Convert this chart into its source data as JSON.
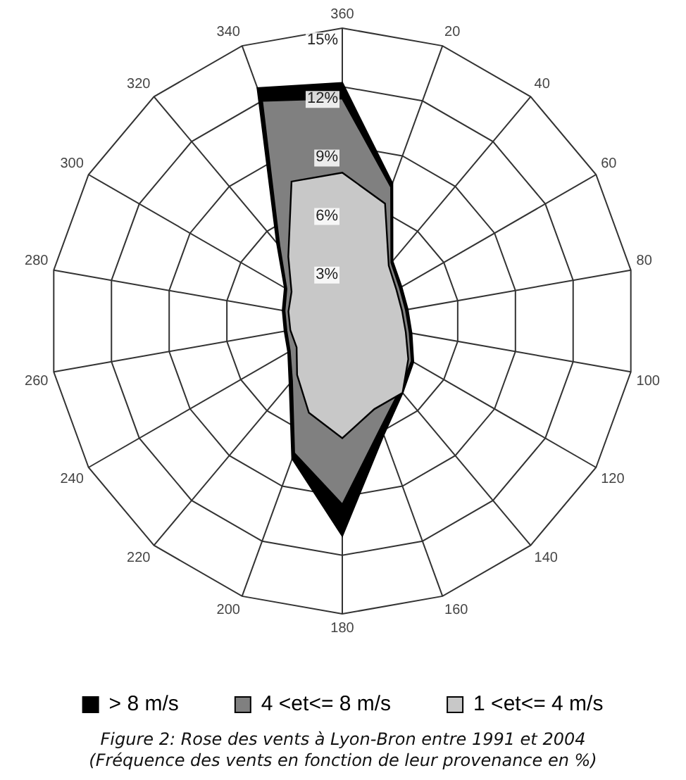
{
  "chart_data": {
    "type": "radar",
    "categories": [
      "360",
      "20",
      "40",
      "60",
      "80",
      "100",
      "120",
      "140",
      "160",
      "180",
      "200",
      "220",
      "240",
      "260",
      "280",
      "300",
      "320",
      "340"
    ],
    "series": [
      {
        "name": "> 8 m/s",
        "color": "#000000",
        "values": [
          12.2,
          7.5,
          4.0,
          3.5,
          3.4,
          3.6,
          4.2,
          4.8,
          6.2,
          11.0,
          7.5,
          4.2,
          3.2,
          3.0,
          3.1,
          3.4,
          5.2,
          12.7
        ]
      },
      {
        "name": "4 <et<= 8 m/s",
        "color": "#808080",
        "values": [
          11.4,
          7.3,
          3.9,
          3.4,
          3.3,
          3.5,
          4.1,
          4.6,
          5.8,
          9.4,
          7.2,
          4.0,
          3.1,
          2.9,
          3.0,
          3.3,
          5.0,
          12.0
        ]
      },
      {
        "name": "1 <et<= 4 m/s",
        "color": "#c8c8c8",
        "values": [
          7.6,
          6.4,
          3.7,
          3.2,
          3.1,
          3.3,
          3.9,
          4.8,
          4.8,
          6.0,
          5.0,
          3.6,
          2.7,
          2.7,
          2.8,
          3.0,
          4.3,
          7.6
        ]
      }
    ],
    "ylim": [
      0,
      15
    ],
    "yticks": [
      {
        "value": 3,
        "label": "3%"
      },
      {
        "value": 6,
        "label": "6%"
      },
      {
        "value": 9,
        "label": "9%"
      },
      {
        "value": 12,
        "label": "12%"
      },
      {
        "value": 15,
        "label": "15%"
      }
    ],
    "grid": true,
    "legend": "bottom",
    "marker": "none",
    "annotations": [
      "Figure 2: Rose des vents à Lyon-Bron entre 1991 et 2004",
      "(Fréquence des vents en fonction de leur provenance en %)"
    ]
  }
}
